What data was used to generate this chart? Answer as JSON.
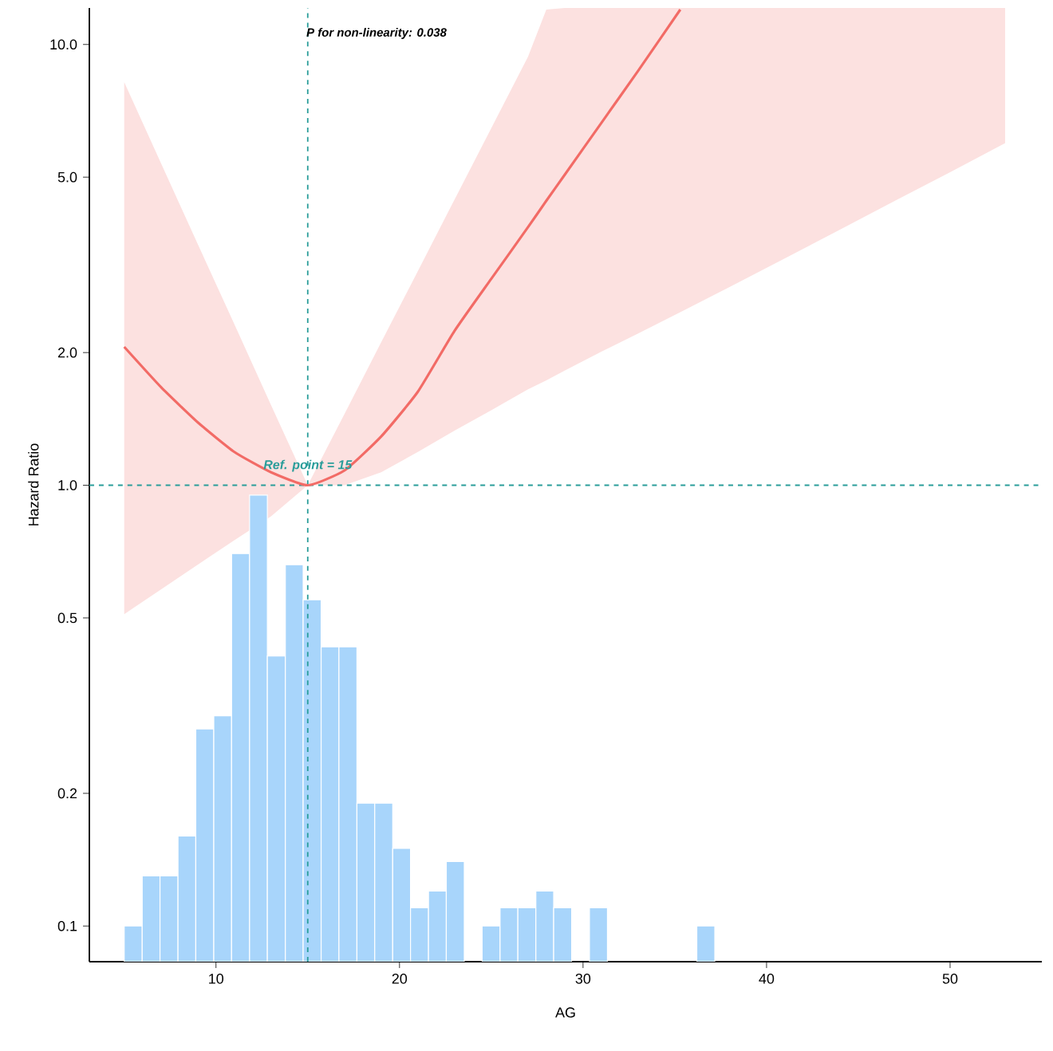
{
  "chart_data": {
    "type": "line",
    "xlabel": "AG",
    "ylabel": "Hazard Ratio",
    "log": "y",
    "xlim": [
      3.1,
      55
    ],
    "ylim": [
      0.083,
      12.1
    ],
    "xticks": [
      10,
      20,
      30,
      40,
      50
    ],
    "yticks": [
      0.1,
      0.2,
      0.5,
      {
        "value": 1,
        "label": "1.0"
      },
      {
        "value": 2,
        "label": "2.0"
      },
      {
        "value": 5,
        "label": "5.0"
      },
      {
        "value": 10,
        "label": "10.0"
      }
    ],
    "series": [
      {
        "type": "histogram",
        "color": "#a8d5fb",
        "bins": [
          5.0,
          5.98,
          6.95,
          7.93,
          8.9,
          9.88,
          10.85,
          11.83,
          12.8,
          13.78,
          14.75,
          15.73,
          16.7,
          17.68,
          18.65,
          19.63,
          20.6,
          21.58,
          22.55,
          23.53,
          24.5,
          25.48,
          26.45,
          27.43,
          28.4,
          29.38,
          30.35,
          31.33,
          32.3,
          33.28,
          34.25,
          35.23,
          36.2,
          37.18
        ],
        "values": [
          0.1,
          0.13,
          0.13,
          0.16,
          0.28,
          0.3,
          0.7,
          0.95,
          0.41,
          0.66,
          0.55,
          0.43,
          0.43,
          0.19,
          0.19,
          0.15,
          0.11,
          0.12,
          0.14,
          null,
          0.1,
          0.11,
          0.11,
          0.12,
          0.11,
          null,
          0.11,
          null,
          null,
          null,
          null,
          null,
          0.1
        ]
      },
      {
        "color": "#f26b66",
        "line_style": "solid",
        "x": [
          5,
          7,
          9,
          11,
          13,
          15,
          17,
          19,
          21,
          23,
          25,
          27,
          28,
          29,
          31,
          33,
          35.3,
          38,
          41,
          44,
          47,
          50,
          53
        ],
        "values": [
          2.06,
          1.67,
          1.39,
          1.19,
          1.07,
          1.0,
          1.08,
          1.29,
          1.63,
          2.24,
          2.94,
          3.85,
          4.42,
          5.06,
          6.64,
          8.71,
          12.0,
          null,
          null,
          null,
          null,
          null,
          null
        ],
        "lower": [
          0.51,
          0.58,
          0.66,
          0.75,
          0.85,
          1.0,
          1.0,
          1.07,
          1.19,
          1.33,
          1.48,
          1.65,
          1.73,
          1.82,
          2.01,
          2.21,
          2.47,
          2.82,
          3.27,
          3.8,
          4.42,
          5.13,
          5.97
        ],
        "upper": [
          8.21,
          5.38,
          3.53,
          2.32,
          1.52,
          1.0,
          1.45,
          2.11,
          3.06,
          4.45,
          6.46,
          9.38,
          12.0,
          12.1,
          12.1,
          12.1,
          12.1,
          12.1,
          12.1,
          12.1,
          12.1,
          12.1,
          12.1
        ]
      }
    ],
    "ref_lines": [
      {
        "axis": "y",
        "value": 1,
        "color": "#2a9d9a",
        "line_style": "dashed"
      },
      {
        "axis": "x",
        "value": 15,
        "color": "#2a9d9a",
        "line_style": "dashed"
      }
    ],
    "annotations": [
      "P for non-linearity: 0.038",
      {
        "text": "Ref. point = 15",
        "x": 15,
        "y": 1
      }
    ]
  }
}
